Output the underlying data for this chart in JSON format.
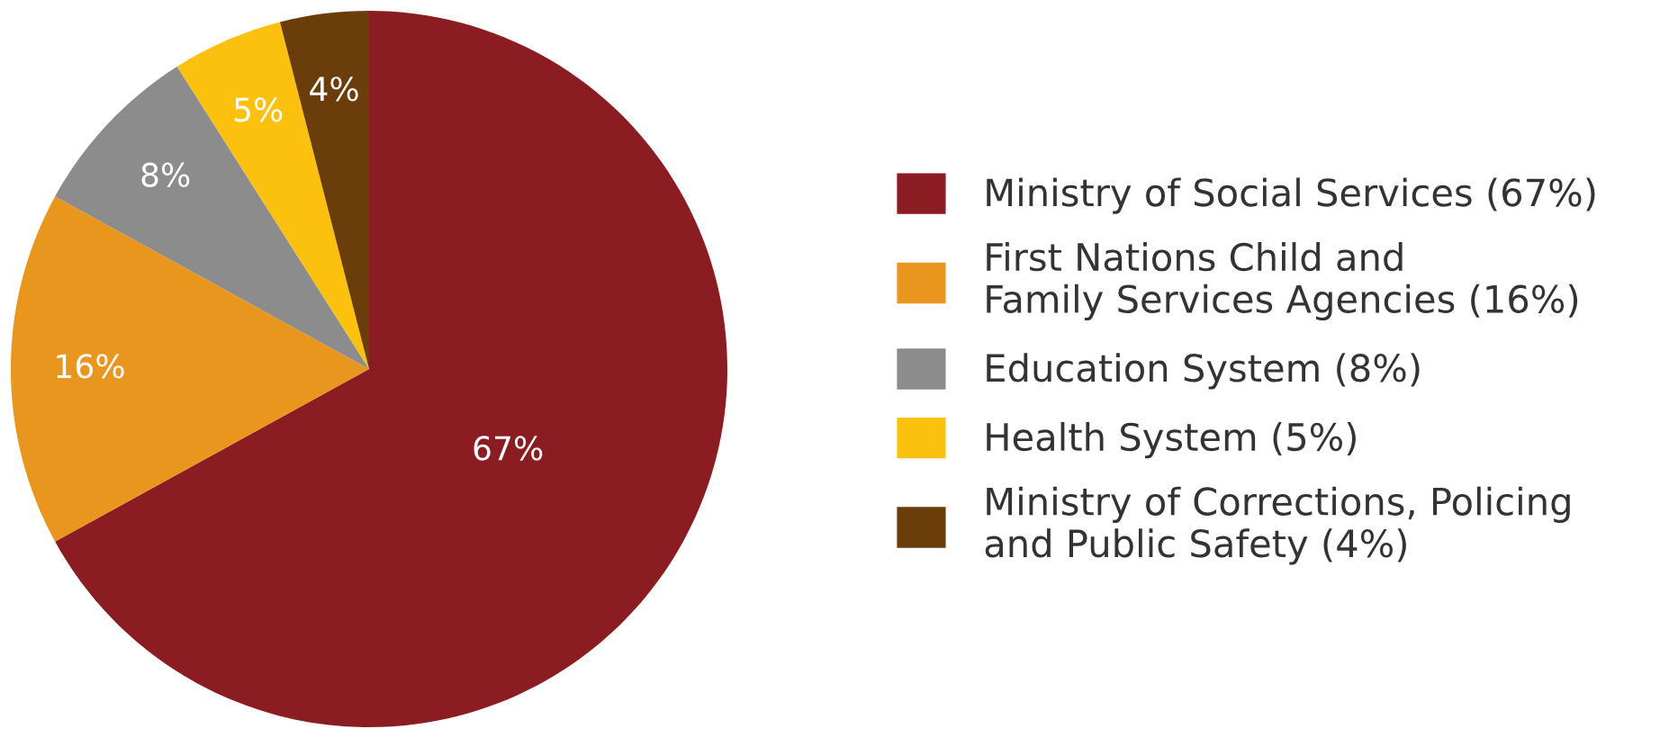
{
  "chart_data": {
    "type": "pie",
    "categories": [
      "Ministry of Social Services (67%)",
      "First Nations Child and\nFamily Services Agencies (16%)",
      "Education System (8%)",
      "Health System (5%)",
      "Ministry of Corrections, Policing\nand Public Safety (4%)"
    ],
    "values": [
      67,
      16,
      8,
      5,
      4
    ],
    "colors": [
      "#8b1c22",
      "#e8961e",
      "#8c8c8c",
      "#fcc00f",
      "#6b3d0b"
    ],
    "value_labels": [
      "67%",
      "16%",
      "8%",
      "5%",
      "4%"
    ],
    "legend": "right"
  }
}
